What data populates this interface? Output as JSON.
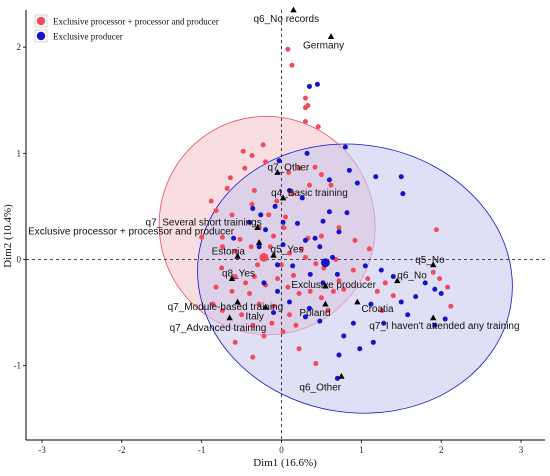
{
  "chart_data": {
    "type": "scatter",
    "xlabel": "Dim1 (16.6%)",
    "ylabel": "Dim2 (10.4%)",
    "xlim": [
      -3.2,
      3.3
    ],
    "ylim": [
      -1.7,
      2.35
    ],
    "xticks": [
      "-3",
      "-2",
      "-1",
      "0",
      "1",
      "2",
      "3"
    ],
    "yticks": [
      "-1",
      "0",
      "1",
      "2"
    ],
    "tick_values_x": [
      -3,
      -2,
      -1,
      0,
      1,
      2,
      3
    ],
    "tick_values_y": [
      -1,
      0,
      1,
      2
    ],
    "legend_position": "top-left",
    "grid": false,
    "colors": {
      "group1": "#f04a5c",
      "group2": "#1414c8",
      "ellipse1_fill": "#f3c6cd",
      "ellipse2_fill": "#c9c9ef"
    },
    "series": [
      {
        "name": "Exclusive processor + processor and producer",
        "color": "#f04a5c",
        "points": [
          [
            0.08,
            1.98
          ],
          [
            0.13,
            1.83
          ],
          [
            -0.23,
            1.08
          ],
          [
            0.3,
            1.3
          ],
          [
            0.3,
            1.43
          ],
          [
            0.3,
            1.52
          ],
          [
            0.46,
            1.25
          ],
          [
            0.33,
            1.45
          ],
          [
            -0.48,
            1.02
          ],
          [
            -0.37,
            0.98
          ],
          [
            -0.64,
            0.77
          ],
          [
            -0.68,
            0.67
          ],
          [
            -0.2,
            0.92
          ],
          [
            0.22,
            0.86
          ],
          [
            0.42,
            0.87
          ],
          [
            0.5,
            0.8
          ],
          [
            0.62,
            0.7
          ],
          [
            0.09,
            0.82
          ],
          [
            -0.46,
            0.86
          ],
          [
            -0.34,
            0.65
          ],
          [
            -0.37,
            0.52
          ],
          [
            -0.88,
            0.55
          ],
          [
            -0.82,
            0.46
          ],
          [
            -0.62,
            0.42
          ],
          [
            -0.16,
            0.42
          ],
          [
            -0.74,
            0.21
          ],
          [
            -0.52,
            0.19
          ],
          [
            -0.28,
            0.3
          ],
          [
            0.03,
            0.3
          ],
          [
            -0.1,
            0.22
          ],
          [
            -1.0,
            0.21
          ],
          [
            -0.74,
            0.12
          ],
          [
            -0.58,
            0.08
          ],
          [
            -0.38,
            0.12
          ],
          [
            -0.14,
            0.12
          ],
          [
            0.1,
            0.06
          ],
          [
            0.25,
            0.1
          ],
          [
            0.33,
            0.2
          ],
          [
            0.5,
            0.22
          ],
          [
            0.3,
            0.02
          ],
          [
            0.43,
            -0.04
          ],
          [
            0.53,
            -0.08
          ],
          [
            0.68,
            0.0
          ],
          [
            -0.75,
            -0.08
          ],
          [
            -0.58,
            -0.16
          ],
          [
            -0.45,
            -0.22
          ],
          [
            -0.34,
            -0.16
          ],
          [
            -0.2,
            -0.24
          ],
          [
            -0.05,
            -0.18
          ],
          [
            0.08,
            -0.26
          ],
          [
            0.22,
            -0.32
          ],
          [
            0.36,
            -0.3
          ],
          [
            0.5,
            -0.36
          ],
          [
            0.65,
            -0.3
          ],
          [
            -0.4,
            -0.32
          ],
          [
            -0.28,
            -0.42
          ],
          [
            -0.1,
            -0.44
          ],
          [
            0.1,
            -0.52
          ],
          [
            0.18,
            -0.62
          ],
          [
            -0.12,
            -0.6
          ],
          [
            -0.36,
            -0.62
          ],
          [
            -0.5,
            -0.52
          ],
          [
            -0.22,
            -0.72
          ],
          [
            0.02,
            -0.68
          ],
          [
            -0.62,
            -0.3
          ],
          [
            -0.82,
            -0.26
          ],
          [
            -0.3,
            -0.05
          ],
          [
            0.0,
            -0.05
          ],
          [
            0.15,
            -0.15
          ],
          [
            0.05,
            0.4
          ],
          [
            0.14,
            0.62
          ],
          [
            -0.06,
            0.55
          ],
          [
            0.35,
            0.7
          ],
          [
            0.72,
            0.3
          ],
          [
            0.92,
            0.18
          ],
          [
            0.72,
            -0.2
          ],
          [
            0.9,
            -0.1
          ],
          [
            0.58,
            -0.48
          ],
          [
            0.78,
            -0.28
          ],
          [
            1.08,
            -0.18
          ],
          [
            1.2,
            -0.3
          ],
          [
            1.26,
            -0.48
          ],
          [
            1.3,
            -0.22
          ],
          [
            1.4,
            -0.34
          ],
          [
            1.9,
            -0.12
          ],
          [
            1.98,
            -0.18
          ],
          [
            2.08,
            -0.26
          ],
          [
            1.94,
            0.28
          ],
          [
            2.12,
            -0.44
          ],
          [
            1.1,
            0.1
          ],
          [
            -0.58,
            -0.78
          ],
          [
            -0.36,
            -0.92
          ],
          [
            0.22,
            -0.84
          ],
          [
            0.43,
            -0.98
          ],
          [
            -0.86,
            -0.42
          ],
          [
            -0.74,
            -0.48
          ]
        ]
      },
      {
        "name": "Exclusive producer",
        "color": "#1414c8",
        "points": [
          [
            0.35,
            1.63
          ],
          [
            0.45,
            1.65
          ],
          [
            0.32,
            1.0
          ],
          [
            -0.03,
            0.93
          ],
          [
            0.8,
            1.06
          ],
          [
            0.85,
            0.84
          ],
          [
            0.95,
            0.72
          ],
          [
            1.5,
            0.78
          ],
          [
            1.52,
            0.62
          ],
          [
            1.18,
            0.78
          ],
          [
            0.6,
            0.75
          ],
          [
            0.1,
            0.65
          ],
          [
            -0.08,
            0.5
          ],
          [
            0.26,
            0.58
          ],
          [
            -0.26,
            0.42
          ],
          [
            -0.4,
            0.35
          ],
          [
            0.6,
            0.45
          ],
          [
            0.52,
            0.36
          ],
          [
            0.82,
            0.44
          ],
          [
            -0.2,
            0.28
          ],
          [
            0.2,
            0.34
          ],
          [
            0.42,
            0.2
          ],
          [
            0.72,
            0.26
          ],
          [
            0.02,
            0.14
          ],
          [
            0.3,
            0.18
          ],
          [
            0.48,
            0.12
          ],
          [
            -0.2,
            0.02
          ],
          [
            0.14,
            -0.06
          ],
          [
            0.36,
            -0.14
          ],
          [
            0.52,
            -0.22
          ],
          [
            0.7,
            -0.14
          ],
          [
            0.55,
            -0.05
          ],
          [
            -0.22,
            -0.22
          ],
          [
            -0.05,
            -0.3
          ],
          [
            0.1,
            -0.4
          ],
          [
            0.35,
            -0.46
          ],
          [
            0.48,
            -0.58
          ],
          [
            0.3,
            -0.54
          ],
          [
            -0.1,
            -0.5
          ],
          [
            1.05,
            -0.06
          ],
          [
            1.25,
            -0.1
          ],
          [
            1.4,
            -0.16
          ],
          [
            1.5,
            -0.4
          ],
          [
            1.58,
            -0.52
          ],
          [
            1.68,
            -0.35
          ],
          [
            1.8,
            -0.22
          ],
          [
            1.92,
            -0.28
          ],
          [
            2.0,
            -0.32
          ],
          [
            2.05,
            -0.56
          ],
          [
            1.92,
            -0.62
          ],
          [
            1.28,
            -0.6
          ],
          [
            1.12,
            -0.42
          ],
          [
            0.9,
            -0.6
          ],
          [
            0.78,
            -0.72
          ],
          [
            0.72,
            -0.9
          ],
          [
            0.7,
            -1.12
          ],
          [
            0.98,
            -0.84
          ],
          [
            1.15,
            -0.78
          ],
          [
            -0.05,
            -0.05
          ],
          [
            -0.28,
            0.12
          ],
          [
            -0.6,
            0.2
          ],
          [
            -0.36,
            0.48
          ],
          [
            0.02,
            0.35
          ],
          [
            0.64,
            0.02
          ]
        ]
      }
    ],
    "centroids": [
      {
        "name": "Exclusive processor + processor and producer",
        "x": -0.22,
        "y": 0.02,
        "color": "#f04a5c"
      },
      {
        "name": "Exclusive producer",
        "x": 0.55,
        "y": -0.03,
        "color": "#1414c8"
      }
    ],
    "ellipses": [
      {
        "name": "Exclusive processor + processor and producer",
        "cx": -0.18,
        "cy": 0.32,
        "rx": 1.35,
        "ry": 1.03,
        "angle": 20
      },
      {
        "name": "Exclusive producer",
        "cx": 0.92,
        "cy": -0.18,
        "rx": 1.98,
        "ry": 1.26,
        "angle": -10
      }
    ],
    "annotations": [
      {
        "text": "q6_No records",
        "x": 0.15,
        "y": 2.35,
        "label": "q6_No records",
        "ldx": -40,
        "ldy": 12
      },
      {
        "text": "Germany",
        "x": 0.62,
        "y": 2.1,
        "label": "Germany",
        "ldx": -28,
        "ldy": 12
      },
      {
        "text": "q7_Other",
        "x": -0.05,
        "y": 0.82,
        "label": "q7_Other",
        "ldx": -10,
        "ldy": -2
      },
      {
        "text": "q4_Basic training",
        "x": 0.02,
        "y": 0.58,
        "label": "q4_Basic training",
        "ldx": -12,
        "ldy": -2
      },
      {
        "text": "q7_Several short trainings",
        "x": -0.3,
        "y": 0.3,
        "label": "q7_Several short trainings",
        "ldx": -112,
        "ldy": -2
      },
      {
        "text": "Exclusive processor + processor and producer",
        "x": -0.28,
        "y": 0.16,
        "label": "Exclusive processor + processor and producer",
        "ldx": -231,
        "ldy": -8
      },
      {
        "text": "q5_Yes",
        "x": -0.1,
        "y": 0.04,
        "label": "q5_Yes",
        "ldx": -3,
        "ldy": -3
      },
      {
        "text": "Estonia",
        "x": -0.55,
        "y": 0.03,
        "label": "Estonia",
        "ldx": -26,
        "ldy": -2
      },
      {
        "text": "q8_Yes",
        "x": -0.62,
        "y": -0.18,
        "label": "q8_Yes",
        "ldx": -10,
        "ldy": -2
      },
      {
        "text": "q5_No",
        "x": 1.9,
        "y": -0.05,
        "label": "q5_No",
        "ldx": -18,
        "ldy": -2
      },
      {
        "text": "q6_No",
        "x": 1.45,
        "y": -0.2,
        "label": "q6_No",
        "ldx": 0,
        "ldy": -2
      },
      {
        "text": "Exclusive producer",
        "x": 0.55,
        "y": -0.25,
        "label": "Exclusive producer",
        "ldx": -34,
        "ldy": 2
      },
      {
        "text": "q7_Module-based training",
        "x": -0.55,
        "y": -0.4,
        "label": "q7_Module-based training",
        "ldx": -70,
        "ldy": 8
      },
      {
        "text": "Italy",
        "x": -0.2,
        "y": -0.45,
        "label": "Italy",
        "ldx": -20,
        "ldy": 12
      },
      {
        "text": "Poland",
        "x": 0.55,
        "y": -0.42,
        "label": "Poland",
        "ldx": -26,
        "ldy": 12
      },
      {
        "text": "Croatia",
        "x": 0.95,
        "y": -0.4,
        "label": "Croatia",
        "ldx": 4,
        "ldy": 10
      },
      {
        "text": "q7_Advanced training",
        "x": -0.65,
        "y": -0.55,
        "label": "q7_Advanced training",
        "ldx": -60,
        "ldy": 13
      },
      {
        "text": "q7_I haven't attended any training",
        "x": 1.9,
        "y": -0.55,
        "label": "q7_I haven't attended any training",
        "ldx": -64,
        "ldy": 11
      },
      {
        "text": "q6_Other",
        "x": 0.75,
        "y": -1.1,
        "label": "q6_Other",
        "ldx": -42,
        "ldy": 14
      }
    ]
  }
}
